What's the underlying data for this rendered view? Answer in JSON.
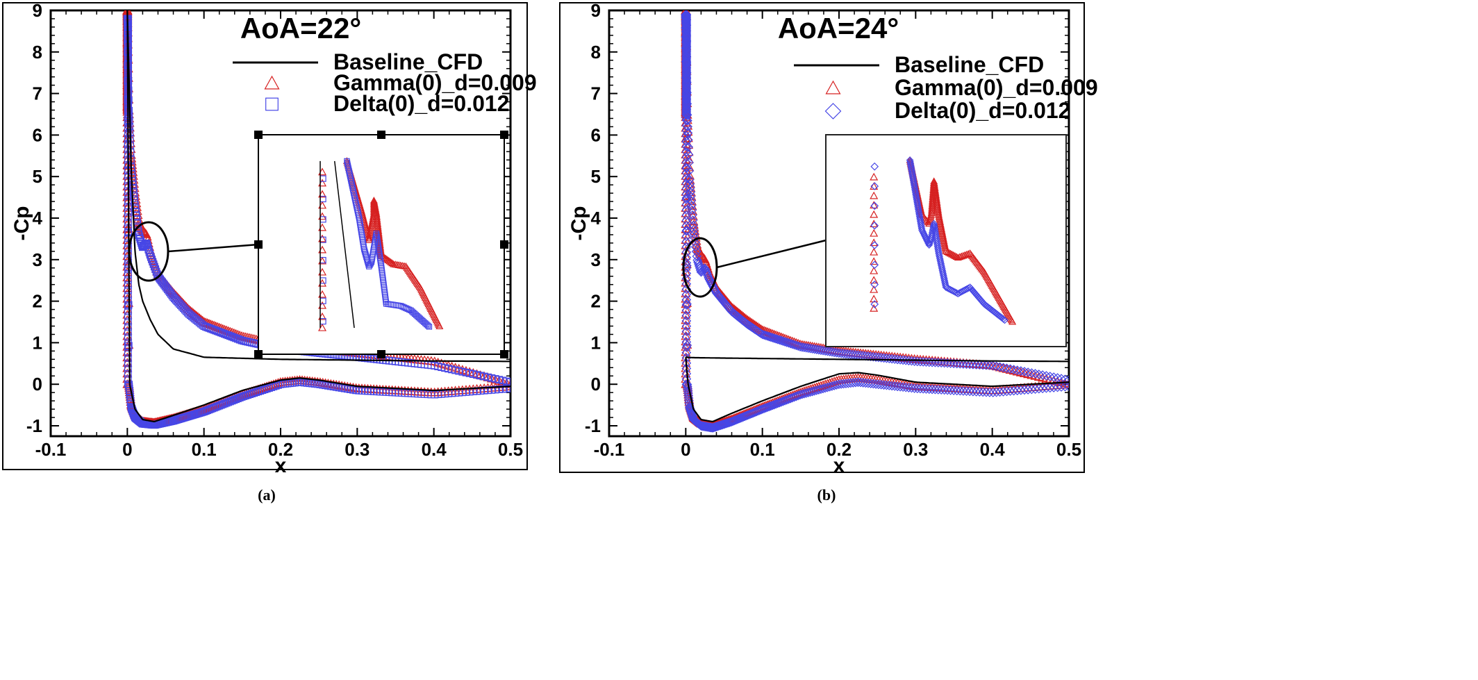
{
  "colors": {
    "baseline": "#000000",
    "gamma": "#d62020",
    "delta": "#4646e6"
  },
  "chart_data": [
    {
      "type": "scatter",
      "panel_label": "(a)",
      "title": "AoA=22°",
      "xlabel": "x",
      "ylabel": "-Cp",
      "xlim": [
        -0.1,
        0.5
      ],
      "ylim": [
        -1.2,
        9
      ],
      "xticks": [
        "-0.1",
        "0",
        "0.1",
        "0.2",
        "0.3",
        "0.4",
        "0.5"
      ],
      "yticks": [
        "-1",
        "0",
        "1",
        "2",
        "3",
        "4",
        "5",
        "6",
        "7",
        "8",
        "9"
      ],
      "legend": {
        "placement": "top-right",
        "entries": [
          "Baseline_CFD",
          "Gamma(0)_d=0.009",
          "Delta(0)_d=0.012"
        ]
      },
      "delta_marker": "square",
      "series": [
        {
          "name": "Baseline_CFD",
          "style": "line",
          "upper": {
            "x": [
              0.0,
              0.005,
              0.01,
              0.015,
              0.02,
              0.03,
              0.04,
              0.06,
              0.1,
              0.2,
              0.3,
              0.4,
              0.5
            ],
            "y": [
              9.0,
              5.2,
              3.2,
              2.4,
              2.0,
              1.55,
              1.2,
              0.85,
              0.65,
              0.6,
              0.58,
              0.56,
              0.55
            ]
          },
          "lower": {
            "x": [
              0.0,
              0.003,
              0.01,
              0.02,
              0.035,
              0.06,
              0.1,
              0.15,
              0.2,
              0.225,
              0.25,
              0.3,
              0.4,
              0.5
            ],
            "y": [
              9.0,
              0.0,
              -0.6,
              -0.85,
              -0.9,
              -0.75,
              -0.5,
              -0.15,
              0.1,
              0.15,
              0.1,
              -0.05,
              -0.15,
              -0.05
            ]
          }
        },
        {
          "name": "Gamma(0)_d=0.009",
          "style": "markers",
          "upper": {
            "x": [
              0.0,
              0.002,
              0.005,
              0.01,
              0.015,
              0.02,
              0.025,
              0.03,
              0.04,
              0.06,
              0.08,
              0.1,
              0.15,
              0.2,
              0.3,
              0.4,
              0.5
            ],
            "y": [
              9.0,
              6.6,
              5.5,
              4.6,
              3.9,
              3.7,
              3.6,
              3.2,
              2.65,
              2.2,
              1.8,
              1.5,
              1.15,
              0.95,
              0.75,
              0.55,
              0.0
            ]
          },
          "lower": {
            "x": [
              0.0,
              0.002,
              0.005,
              0.01,
              0.02,
              0.035,
              0.06,
              0.1,
              0.15,
              0.2,
              0.225,
              0.25,
              0.3,
              0.4,
              0.5
            ],
            "y": [
              9.0,
              0.0,
              -0.5,
              -0.75,
              -0.9,
              -0.93,
              -0.82,
              -0.6,
              -0.25,
              0.05,
              0.1,
              0.05,
              -0.1,
              -0.2,
              -0.05
            ]
          }
        },
        {
          "name": "Delta(0)_d=0.012",
          "style": "markers",
          "upper": {
            "x": [
              0.0,
              0.002,
              0.005,
              0.01,
              0.015,
              0.02,
              0.025,
              0.03,
              0.04,
              0.06,
              0.08,
              0.1,
              0.15,
              0.2,
              0.3,
              0.4,
              0.5
            ],
            "y": [
              8.8,
              6.6,
              5.2,
              4.3,
              3.6,
              3.3,
              3.4,
              3.1,
              2.6,
              2.1,
              1.7,
              1.4,
              1.05,
              0.85,
              0.65,
              0.45,
              0.05
            ]
          },
          "lower": {
            "x": [
              0.0,
              0.002,
              0.005,
              0.01,
              0.02,
              0.035,
              0.06,
              0.1,
              0.15,
              0.2,
              0.225,
              0.25,
              0.3,
              0.4,
              0.5
            ],
            "y": [
              8.8,
              0.0,
              -0.55,
              -0.8,
              -0.95,
              -0.98,
              -0.88,
              -0.66,
              -0.3,
              0.0,
              0.05,
              0.0,
              -0.15,
              -0.25,
              -0.1
            ]
          }
        }
      ]
    },
    {
      "type": "scatter",
      "panel_label": "(b)",
      "title": "AoA=24°",
      "xlabel": "x",
      "ylabel": "-Cp",
      "xlim": [
        -0.1,
        0.5
      ],
      "ylim": [
        -1.2,
        9
      ],
      "xticks": [
        "-0.1",
        "0",
        "0.1",
        "0.2",
        "0.3",
        "0.4",
        "0.5"
      ],
      "yticks": [
        "-1",
        "0",
        "1",
        "2",
        "3",
        "4",
        "5",
        "6",
        "7",
        "8",
        "9"
      ],
      "legend": {
        "placement": "top-right",
        "entries": [
          "Baseline_CFD",
          "Gamma(0)_d=0.009",
          "Delta(0)_d=0.012"
        ]
      },
      "delta_marker": "diamond",
      "series": [
        {
          "name": "Baseline_CFD",
          "style": "line",
          "upper": {
            "x": [
              0.0,
              0.01,
              0.05,
              0.1,
              0.2,
              0.3,
              0.4,
              0.5
            ],
            "y": [
              0.65,
              0.64,
              0.63,
              0.62,
              0.6,
              0.58,
              0.56,
              0.55
            ]
          },
          "lower": {
            "x": [
              0.0,
              0.003,
              0.01,
              0.02,
              0.035,
              0.06,
              0.1,
              0.15,
              0.2,
              0.225,
              0.25,
              0.3,
              0.4,
              0.5
            ],
            "y": [
              0.65,
              0.0,
              -0.6,
              -0.85,
              -0.9,
              -0.7,
              -0.4,
              -0.05,
              0.25,
              0.28,
              0.22,
              0.05,
              -0.05,
              0.05
            ]
          }
        },
        {
          "name": "Gamma(0)_d=0.009",
          "style": "markers",
          "upper": {
            "x": [
              0.0,
              0.002,
              0.005,
              0.01,
              0.015,
              0.02,
              0.025,
              0.03,
              0.04,
              0.06,
              0.08,
              0.1,
              0.15,
              0.2,
              0.3,
              0.4,
              0.5
            ],
            "y": [
              9.0,
              6.5,
              5.0,
              3.9,
              3.3,
              3.1,
              3.0,
              2.7,
              2.3,
              1.85,
              1.55,
              1.3,
              0.95,
              0.8,
              0.6,
              0.45,
              0.0
            ]
          },
          "lower": {
            "x": [
              0.0,
              0.002,
              0.005,
              0.01,
              0.02,
              0.035,
              0.06,
              0.1,
              0.15,
              0.2,
              0.225,
              0.25,
              0.3,
              0.4,
              0.5
            ],
            "y": [
              9.0,
              0.0,
              -0.5,
              -0.8,
              -0.95,
              -1.0,
              -0.85,
              -0.55,
              -0.2,
              0.1,
              0.15,
              0.1,
              -0.05,
              -0.15,
              0.0
            ]
          }
        },
        {
          "name": "Delta(0)_d=0.012",
          "style": "markers",
          "upper": {
            "x": [
              0.0,
              0.002,
              0.005,
              0.01,
              0.015,
              0.02,
              0.025,
              0.03,
              0.04,
              0.06,
              0.08,
              0.1,
              0.15,
              0.2,
              0.3,
              0.4,
              0.5
            ],
            "y": [
              8.9,
              6.5,
              4.9,
              3.8,
              3.0,
              2.7,
              2.8,
              2.55,
              2.2,
              1.75,
              1.45,
              1.2,
              0.9,
              0.75,
              0.55,
              0.45,
              0.1
            ]
          },
          "lower": {
            "x": [
              0.0,
              0.002,
              0.005,
              0.01,
              0.02,
              0.035,
              0.06,
              0.1,
              0.15,
              0.2,
              0.225,
              0.25,
              0.3,
              0.4,
              0.5
            ],
            "y": [
              8.9,
              0.0,
              -0.55,
              -0.85,
              -1.0,
              -1.05,
              -0.9,
              -0.6,
              -0.25,
              0.0,
              0.05,
              0.0,
              -0.1,
              -0.2,
              -0.05
            ]
          }
        }
      ]
    }
  ]
}
